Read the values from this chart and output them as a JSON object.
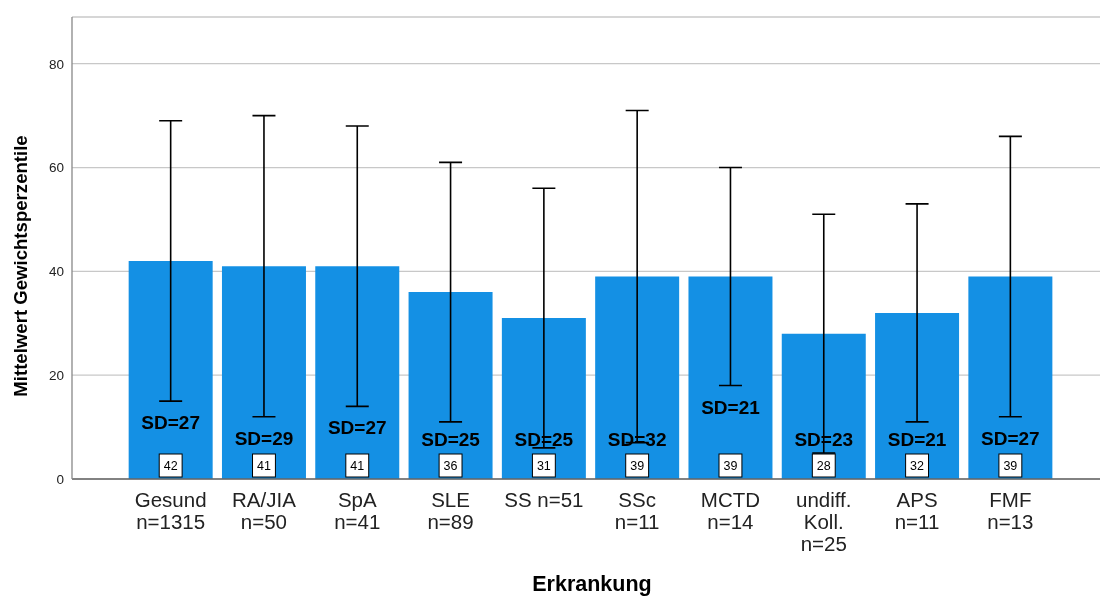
{
  "chart_data": {
    "type": "bar",
    "categories": [
      "Gesund n=1315",
      "RA/JIA n=50",
      "SpA n=41",
      "SLE n=89",
      "SS n=51",
      "SSc n=11",
      "MCTD n=14",
      "undiff. Koll. n=25",
      "APS n=11",
      "FMF n=13"
    ],
    "values": [
      42,
      41,
      41,
      36,
      31,
      39,
      39,
      28,
      32,
      39
    ],
    "color": "#1490e4",
    "errors": [
      27,
      29,
      27,
      25,
      25,
      32,
      21,
      23,
      21,
      27
    ],
    "data_labels": true,
    "ylim": [
      0,
      89
    ],
    "yticks": [
      0,
      20,
      40,
      60,
      80
    ],
    "grid": "y",
    "xlabel": "Erkrankung",
    "ylabel": "Mittelwert Gewichtsperzentile",
    "annotations": [
      "SD=27",
      "SD=29",
      "SD=27",
      "SD=25",
      "SD=25",
      "SD=32",
      "SD=21",
      "SD=23",
      "SD=21",
      "SD=27"
    ]
  }
}
